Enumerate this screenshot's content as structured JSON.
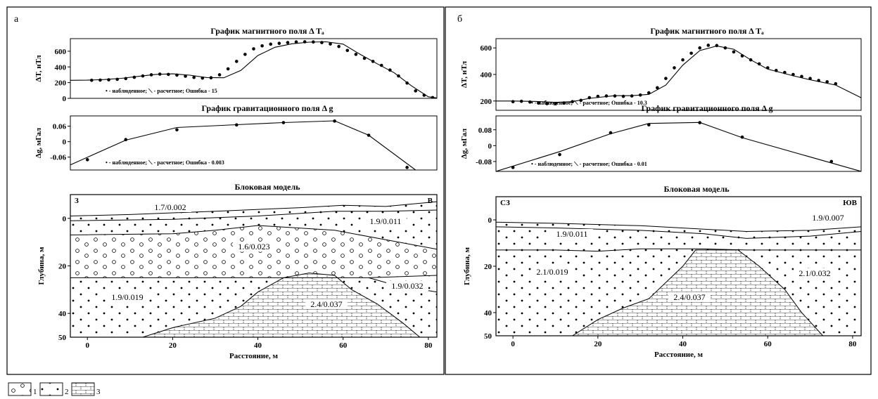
{
  "panels": [
    {
      "letter": "а",
      "magnetic": {
        "title": "График магнитного поля Δ Tₐ",
        "ylabel": "ΔT, нТл",
        "yticks": [
          0,
          200,
          400,
          600
        ],
        "ylim": [
          0,
          760
        ],
        "legend": "• - наблюденное; ⟍ - расчетное; Ошибка - 15",
        "observed": {
          "x": [
            1,
            3,
            5,
            7,
            9,
            11,
            13,
            15,
            17,
            19,
            21,
            23,
            25,
            27,
            29,
            31,
            33,
            35,
            37,
            39,
            41,
            43,
            45,
            47,
            49,
            51,
            53,
            55,
            57,
            59,
            61,
            63,
            65,
            67,
            69,
            71,
            73,
            75,
            77,
            79,
            81
          ],
          "y": [
            230,
            232,
            236,
            242,
            252,
            268,
            285,
            300,
            308,
            305,
            296,
            282,
            266,
            258,
            262,
            300,
            375,
            470,
            560,
            630,
            668,
            690,
            700,
            710,
            718,
            720,
            718,
            710,
            692,
            660,
            610,
            560,
            510,
            470,
            420,
            360,
            285,
            195,
            95,
            40,
            10
          ]
        },
        "calculated": {
          "x": [
            -4,
            0,
            4,
            8,
            12,
            16,
            20,
            24,
            28,
            32,
            36,
            40,
            44,
            48,
            52,
            56,
            60,
            64,
            68,
            72,
            76,
            80,
            82
          ],
          "y": [
            230,
            232,
            240,
            255,
            280,
            305,
            312,
            295,
            265,
            262,
            355,
            545,
            650,
            695,
            715,
            720,
            690,
            560,
            440,
            325,
            160,
            20,
            5
          ]
        }
      },
      "gravity": {
        "title": "График гравитационного поля Δ g",
        "ylabel": "Δg, мГал",
        "yticks": [
          -0.06,
          0,
          0.06
        ],
        "ylim": [
          -0.11,
          0.1
        ],
        "legend": "• - наблюденное; ⟍ - расчетное; Ошибка - 0.003",
        "observed": {
          "x": [
            0,
            9,
            21,
            35,
            46,
            58,
            66,
            75
          ],
          "y": [
            -0.07,
            0.008,
            0.046,
            0.065,
            0.074,
            0.08,
            0.025,
            -0.1
          ]
        },
        "calculated": {
          "x": [
            -4,
            9,
            21,
            35,
            46,
            58,
            66,
            77
          ],
          "y": [
            -0.09,
            0.006,
            0.055,
            0.066,
            0.074,
            0.081,
            0.025,
            -0.11
          ]
        }
      },
      "model": {
        "title": "Блоковая модель",
        "ylabel": "Глубина, м",
        "xlabel": "Расстояние, м",
        "xticks": [
          0,
          20,
          40,
          60,
          80
        ],
        "yticks": [
          0,
          20,
          40
        ],
        "ylim": [
          50,
          -10
        ],
        "xlim": [
          -4,
          82
        ],
        "corner_left": "З",
        "corner_right": "В",
        "blocks": [
          "1.7/0.002",
          "1.9/0.011",
          "1.6/0.023",
          "1.9/0.032",
          "1.9/0.019",
          "2.4/0.037"
        ],
        "boundaries": [
          {
            "x": [
              -4,
              10,
              30,
              50,
              60,
              70,
              82
            ],
            "y": [
              -1,
              -1.6,
              -3,
              -4.5,
              -5.5,
              -5,
              -7
            ]
          },
          {
            "x": [
              -4,
              20,
              40,
              58,
              70,
              82
            ],
            "y": [
              1,
              0.4,
              -1,
              -3,
              -3,
              -3.5
            ]
          },
          {
            "x": [
              -4,
              20,
              30,
              40,
              58,
              70,
              82
            ],
            "y": [
              7,
              6.5,
              5,
              3,
              5,
              9,
              13
            ]
          },
          {
            "x": [
              -4,
              36,
              66,
              82
            ],
            "y": [
              25,
              25,
              25,
              24
            ]
          },
          {
            "x": [
              66,
              72,
              82
            ],
            "y": [
              25,
              28,
              31
            ]
          }
        ],
        "dense_body": {
          "x": [
            13,
            20,
            30,
            36,
            40,
            46,
            52,
            58,
            62,
            68,
            74,
            78
          ],
          "y": [
            50,
            46,
            42,
            37,
            31,
            25,
            23,
            24,
            30,
            36,
            44,
            50
          ]
        }
      }
    },
    {
      "letter": "б",
      "magnetic": {
        "title": "График магнитного поля Δ Tₐ",
        "ylabel": "ΔT, нТл",
        "yticks": [
          200,
          400,
          600
        ],
        "ylim": [
          130,
          670
        ],
        "legend": "• - наблюденное; ⟍ - расчетное; Ошибка - 10.3",
        "observed": {
          "x": [
            0,
            2,
            4,
            6,
            8,
            10,
            12,
            14,
            16,
            18,
            20,
            22,
            24,
            26,
            28,
            30,
            32,
            34,
            36,
            38,
            40,
            42,
            44,
            46,
            48,
            50,
            52,
            54,
            56,
            58,
            60,
            62,
            64,
            66,
            68,
            70,
            72,
            74,
            76
          ],
          "y": [
            195,
            198,
            192,
            185,
            180,
            180,
            185,
            195,
            205,
            225,
            235,
            238,
            238,
            235,
            238,
            245,
            262,
            300,
            370,
            450,
            510,
            560,
            600,
            620,
            618,
            600,
            570,
            540,
            510,
            480,
            450,
            430,
            415,
            400,
            385,
            370,
            355,
            345,
            330
          ]
        },
        "calculated": {
          "x": [
            -4,
            0,
            6,
            10,
            14,
            18,
            24,
            28,
            32,
            36,
            40,
            44,
            48,
            52,
            56,
            60,
            66,
            70,
            76,
            82
          ],
          "y": [
            200,
            200,
            196,
            190,
            195,
            220,
            240,
            240,
            250,
            320,
            470,
            580,
            615,
            590,
            510,
            440,
            390,
            360,
            320,
            225
          ]
        }
      },
      "gravity": {
        "title": "График гравитационного поля Δ g",
        "ylabel": "Δg, мГал",
        "yticks": [
          -0.08,
          0,
          0.08
        ],
        "ylim": [
          -0.13,
          0.15
        ],
        "legend": "• - наблюденное; ⟍ - расчетное; Ошибка - 0.01",
        "observed": {
          "x": [
            0,
            11,
            23,
            32,
            44,
            54,
            75
          ],
          "y": [
            -0.11,
            -0.045,
            0.065,
            0.105,
            0.116,
            0.043,
            -0.08
          ]
        },
        "calculated": {
          "x": [
            -4,
            11,
            23,
            32,
            44,
            54,
            82
          ],
          "y": [
            -0.13,
            -0.03,
            0.06,
            0.112,
            0.117,
            0.04,
            -0.13
          ]
        }
      },
      "model": {
        "title": "Блоковая модель",
        "ylabel": "Глубина, м",
        "xlabel": "Расстояние, м",
        "xticks": [
          0,
          20,
          40,
          60,
          80
        ],
        "yticks": [
          0,
          20,
          40
        ],
        "ylim": [
          50,
          -10
        ],
        "xlim": [
          -4,
          82
        ],
        "corner_left": "СЗ",
        "corner_right": "ЮВ",
        "blocks": [
          "1.9/0.007",
          "1.9/0.011",
          "2.1/0.019",
          "2.1/0.032",
          "2.4/0.037"
        ],
        "boundaries": [
          {
            "x": [
              -4,
              10,
              30,
              45,
              55,
              70,
              82
            ],
            "y": [
              1,
              1.5,
              2.5,
              4,
              5,
              4.5,
              3
            ]
          },
          {
            "x": [
              -4,
              10,
              30,
              45,
              55,
              70,
              82
            ],
            "y": [
              3,
              3.5,
              4.5,
              6,
              8,
              7,
              5
            ]
          },
          {
            "x": [
              -4,
              10,
              20,
              30,
              45,
              55,
              70,
              82
            ],
            "y": [
              13,
              13,
              13.5,
              12.5,
              12.5,
              13,
              13,
              13
            ]
          }
        ],
        "dense_body": {
          "x": [
            14,
            20,
            26,
            32,
            36,
            40,
            43,
            53,
            58,
            64,
            68,
            73
          ],
          "y": [
            50,
            43,
            38,
            34,
            27,
            20,
            13,
            13,
            20,
            30,
            40,
            50
          ]
        }
      }
    }
  ],
  "legend_key": [
    "1",
    "2",
    "3"
  ]
}
